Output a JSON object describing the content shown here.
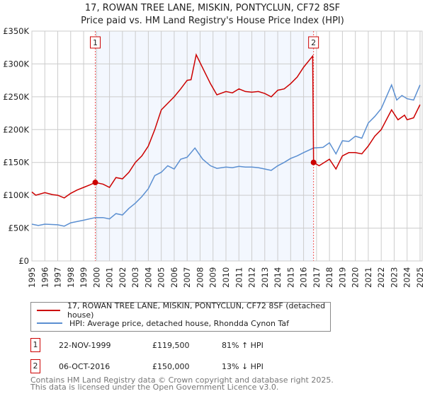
{
  "chart_data": {
    "type": "line",
    "title": "17, ROWAN TREE LANE, MISKIN, PONTYCLUN, CF72 8SF",
    "subtitle": "Price paid vs. HM Land Registry's House Price Index (HPI)",
    "xlim": [
      1995,
      2025.2
    ],
    "ylim": [
      0,
      350000
    ],
    "yticks": [
      {
        "v": 0,
        "label": "£0"
      },
      {
        "v": 50000,
        "label": "£50K"
      },
      {
        "v": 100000,
        "label": "£100K"
      },
      {
        "v": 150000,
        "label": "£150K"
      },
      {
        "v": 200000,
        "label": "£200K"
      },
      {
        "v": 250000,
        "label": "£250K"
      },
      {
        "v": 300000,
        "label": "£300K"
      },
      {
        "v": 350000,
        "label": "£350K"
      }
    ],
    "xticks": [
      "1995",
      "1996",
      "1997",
      "1998",
      "1999",
      "2000",
      "2001",
      "2002",
      "2003",
      "2004",
      "2005",
      "2006",
      "2007",
      "2008",
      "2009",
      "2010",
      "2011",
      "2012",
      "2013",
      "2014",
      "2015",
      "2016",
      "2017",
      "2018",
      "2019",
      "2020",
      "2021",
      "2022",
      "2023",
      "2024",
      "2025"
    ],
    "grid": true,
    "shaded_range": [
      1999.9,
      2016.77
    ],
    "series": [
      {
        "name": "17, ROWAN TREE LANE, MISKIN, PONTYCLUN, CF72 8SF (detached house)",
        "color": "#cc0000",
        "x": [
          1995,
          1995.3,
          1996,
          1996.6,
          1997,
          1997.5,
          1998,
          1998.5,
          1999,
          1999.5,
          1999.9,
          2000.5,
          2001,
          2001.5,
          2002,
          2002.5,
          2003,
          2003.5,
          2004,
          2004.5,
          2005,
          2005.5,
          2006,
          2006.5,
          2007,
          2007.3,
          2007.7,
          2008.3,
          2008.8,
          2009.3,
          2010,
          2010.5,
          2011,
          2011.5,
          2012,
          2012.5,
          2013,
          2013.5,
          2014,
          2014.5,
          2015,
          2015.5,
          2016,
          2016.7,
          2016.77,
          2017.2,
          2018,
          2018.5,
          2019,
          2019.5,
          2020,
          2020.5,
          2021,
          2021.5,
          2022,
          2022.8,
          2023.3,
          2023.8,
          2024,
          2024.5,
          2025
        ],
        "y": [
          105000,
          100000,
          104000,
          101000,
          100000,
          96000,
          103000,
          108000,
          112000,
          116000,
          119500,
          117000,
          112000,
          127000,
          125000,
          135000,
          150000,
          160000,
          175000,
          200000,
          230000,
          240000,
          250000,
          262000,
          275000,
          276000,
          314000,
          290000,
          270000,
          253000,
          258000,
          256000,
          262000,
          258000,
          257000,
          258000,
          255000,
          250000,
          260000,
          262000,
          270000,
          280000,
          295000,
          312000,
          150000,
          145000,
          155000,
          140000,
          160000,
          165000,
          165000,
          163000,
          175000,
          190000,
          200000,
          230000,
          215000,
          222000,
          215000,
          218000,
          238000
        ]
      },
      {
        "name": "HPI: Average price, detached house, Rhondda Cynon Taf",
        "color": "#5b8fd1",
        "x": [
          1995,
          1995.5,
          1996,
          1997,
          1997.5,
          1998,
          1999,
          1999.9,
          2000.5,
          2001,
          2001.5,
          2002,
          2002.5,
          2003,
          2003.5,
          2004,
          2004.5,
          2005,
          2005.5,
          2006,
          2006.5,
          2007,
          2007.6,
          2008.2,
          2008.8,
          2009.3,
          2010,
          2010.5,
          2011,
          2011.5,
          2012,
          2012.5,
          2013,
          2013.5,
          2014,
          2014.5,
          2015,
          2015.5,
          2016,
          2016.77,
          2017.5,
          2018,
          2018.5,
          2019,
          2019.5,
          2020,
          2020.5,
          2021,
          2021.5,
          2022,
          2022.8,
          2023.2,
          2023.6,
          2024,
          2024.5,
          2025
        ],
        "y": [
          56000,
          54000,
          56000,
          55000,
          53000,
          58000,
          62000,
          66000,
          66000,
          64000,
          72000,
          70000,
          80000,
          88000,
          98000,
          110000,
          130000,
          135000,
          145000,
          140000,
          155000,
          158000,
          172000,
          155000,
          145000,
          141000,
          143000,
          142000,
          144000,
          143000,
          143000,
          142000,
          140000,
          138000,
          145000,
          150000,
          156000,
          160000,
          165000,
          172000,
          173000,
          180000,
          163000,
          183000,
          182000,
          190000,
          187000,
          210000,
          220000,
          232000,
          268000,
          245000,
          252000,
          247000,
          245000,
          268000
        ]
      }
    ],
    "sales": [
      {
        "label": "1",
        "x": 1999.9,
        "y": 119500
      },
      {
        "label": "2",
        "x": 2016.77,
        "y": 150000
      }
    ]
  },
  "legend": {
    "items": [
      "17, ROWAN TREE LANE, MISKIN, PONTYCLUN, CF72 8SF (detached house)",
      "HPI: Average price, detached house, Rhondda Cynon Taf"
    ]
  },
  "transactions": [
    {
      "num": "1",
      "date": "22-NOV-1999",
      "price": "£119,500",
      "hpi": "81% ↑ HPI"
    },
    {
      "num": "2",
      "date": "06-OCT-2016",
      "price": "£150,000",
      "hpi": "13% ↓ HPI"
    }
  ],
  "footer": [
    "Contains HM Land Registry data © Crown copyright and database right 2025.",
    "This data is licensed under the Open Government Licence v3.0."
  ]
}
